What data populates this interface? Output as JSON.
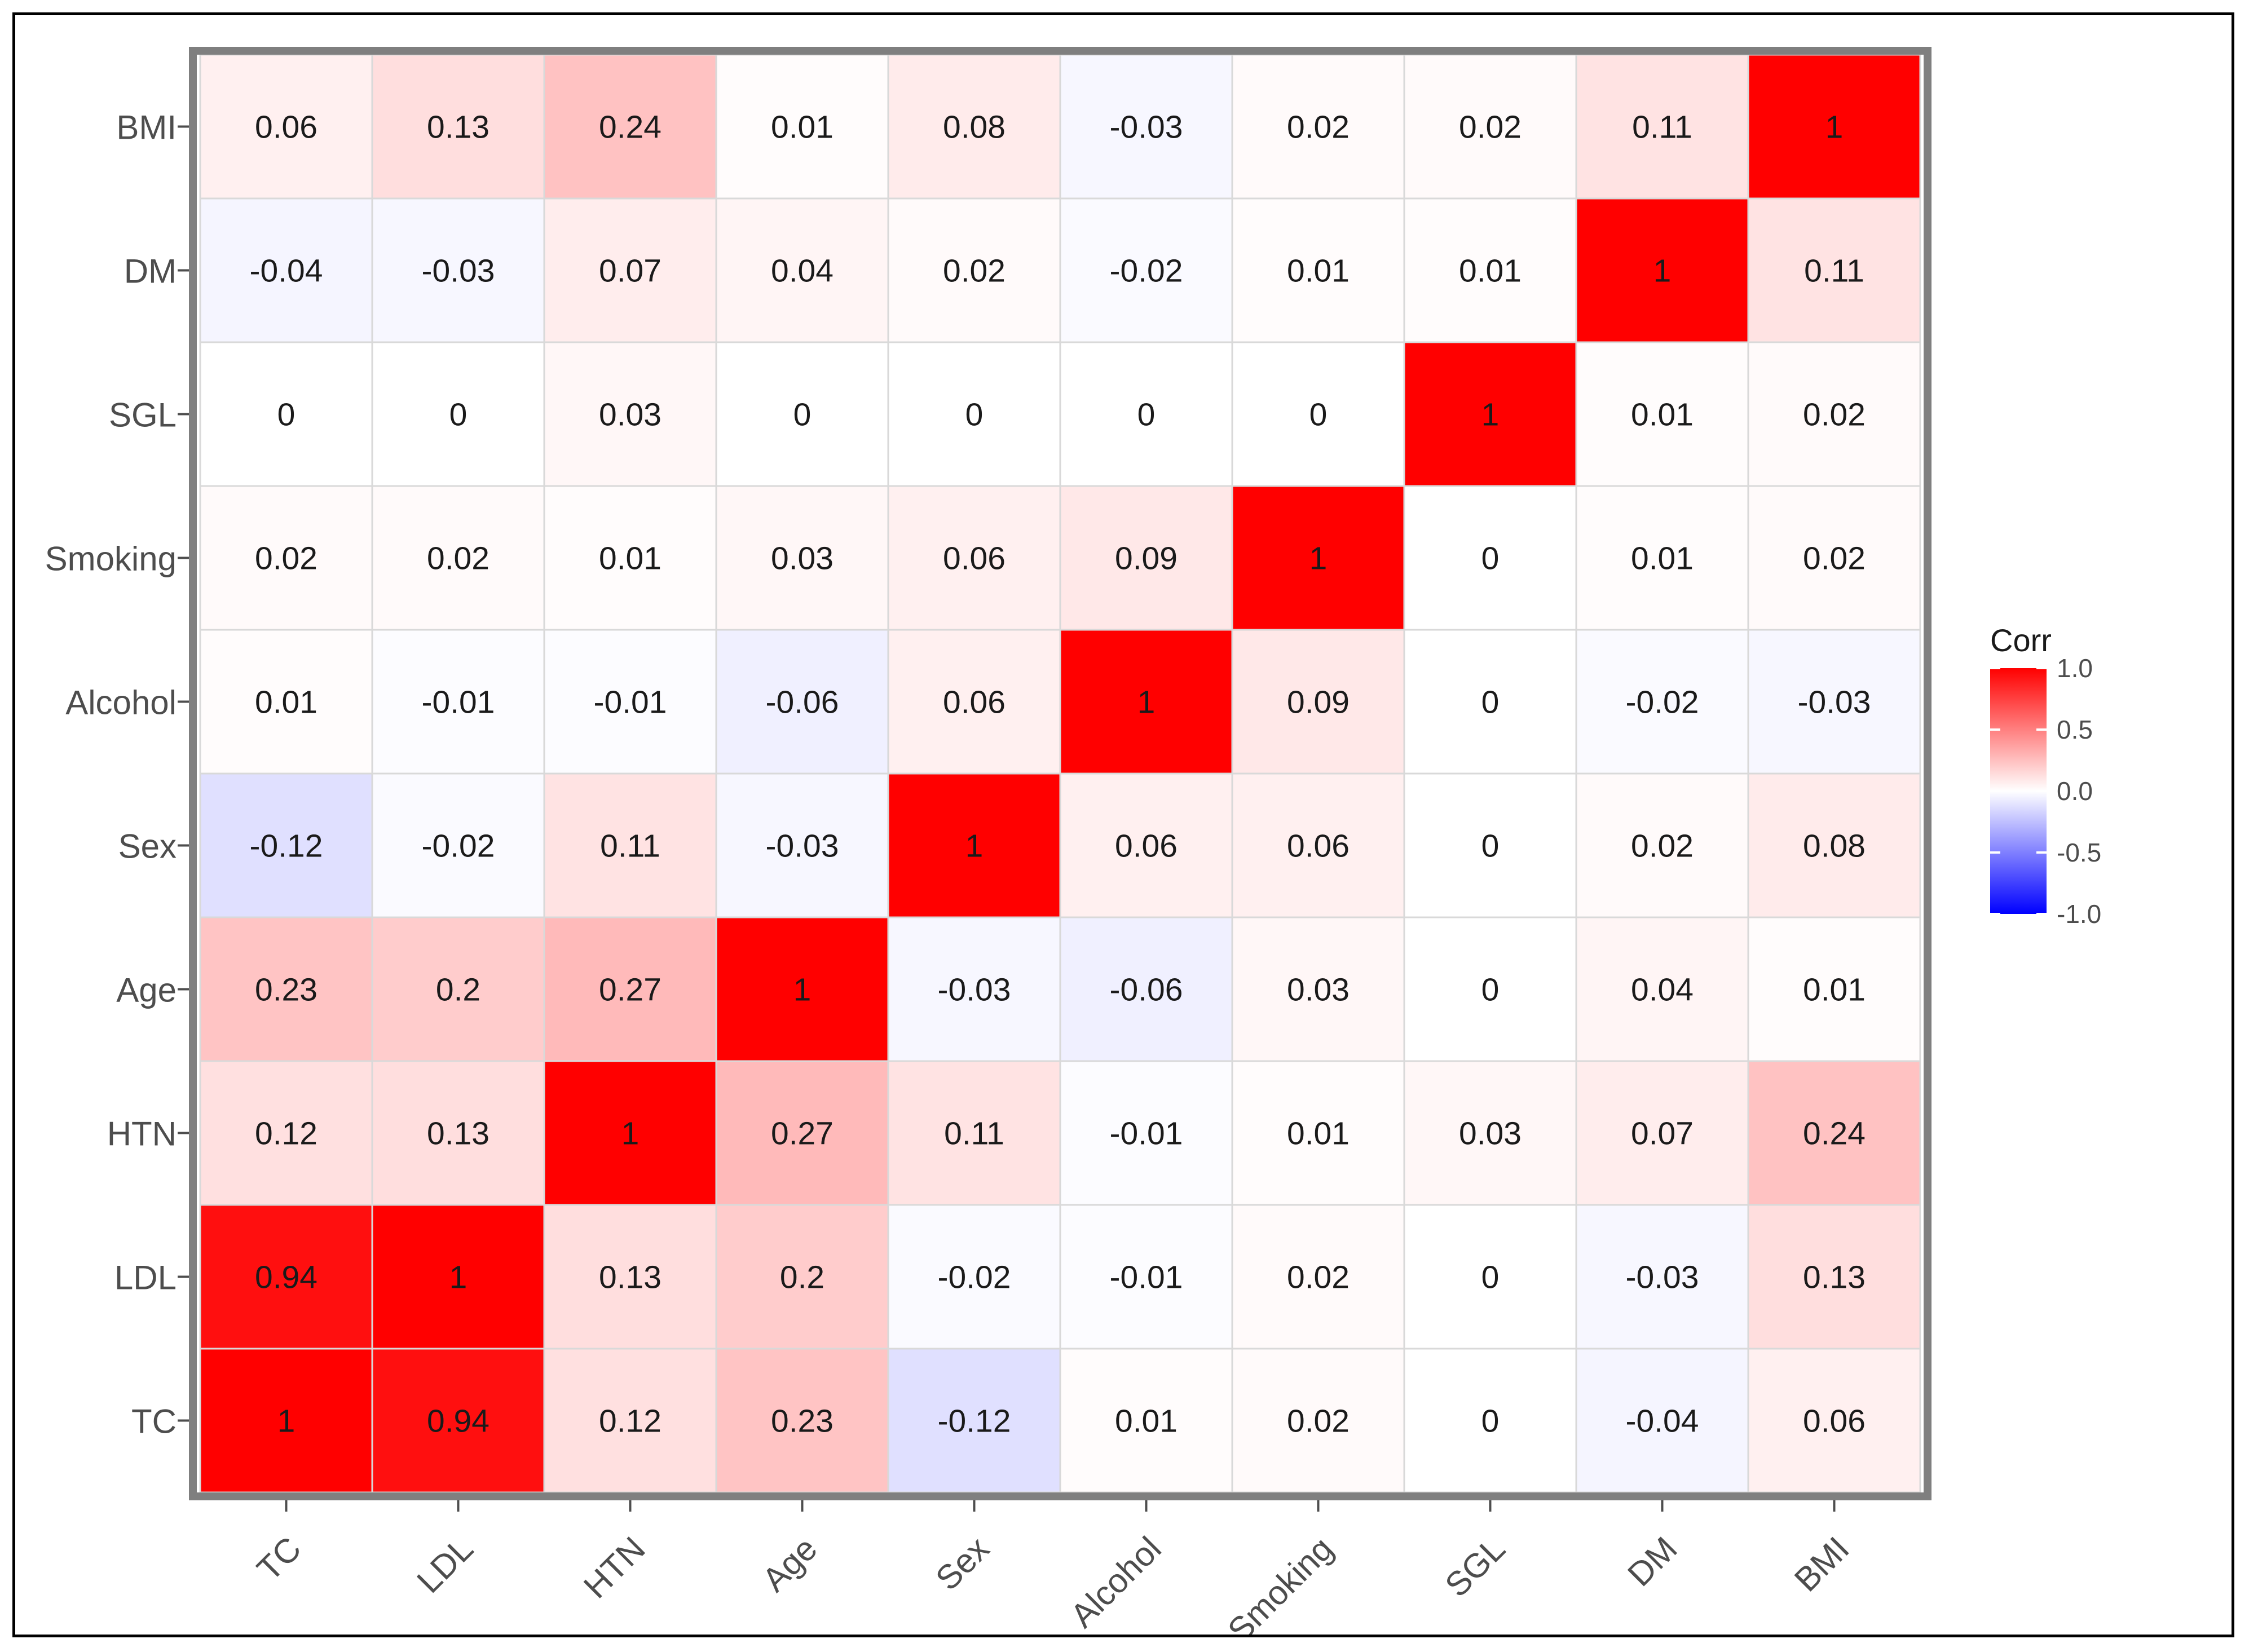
{
  "chart_data": {
    "type": "heatmap",
    "title": "",
    "xlabel": "",
    "ylabel": "",
    "variables": [
      "TC",
      "LDL",
      "HTN",
      "Age",
      "Sex",
      "Alcohol",
      "Smoking",
      "SGL",
      "DM",
      "BMI"
    ],
    "matrix": [
      [
        1,
        0.94,
        0.12,
        0.23,
        -0.12,
        0.01,
        0.02,
        0,
        -0.04,
        0.06
      ],
      [
        0.94,
        1,
        0.13,
        0.2,
        -0.02,
        -0.01,
        0.02,
        0,
        -0.03,
        0.13
      ],
      [
        0.12,
        0.13,
        1,
        0.27,
        0.11,
        -0.01,
        0.01,
        0.03,
        0.07,
        0.24
      ],
      [
        0.23,
        0.2,
        0.27,
        1,
        -0.03,
        -0.06,
        0.03,
        0,
        0.04,
        0.01
      ],
      [
        -0.12,
        -0.02,
        0.11,
        -0.03,
        1,
        0.06,
        0.06,
        0,
        0.02,
        0.08
      ],
      [
        0.01,
        -0.01,
        -0.01,
        -0.06,
        0.06,
        1,
        0.09,
        0,
        -0.02,
        -0.03
      ],
      [
        0.02,
        0.02,
        0.01,
        0.03,
        0.06,
        0.09,
        1,
        0,
        0.01,
        0.02
      ],
      [
        0,
        0,
        0.03,
        0,
        0,
        0,
        0,
        1,
        0.01,
        0.02
      ],
      [
        -0.04,
        -0.03,
        0.07,
        0.04,
        0.02,
        -0.02,
        0.01,
        0.01,
        1,
        0.11
      ],
      [
        0.06,
        0.13,
        0.24,
        0.01,
        0.08,
        -0.03,
        0.02,
        0.02,
        0.11,
        1
      ]
    ],
    "legend": {
      "title": "Corr",
      "ticks": [
        "1.0",
        "0.5",
        "0.0",
        "-0.5",
        "-1.0"
      ],
      "tick_values": [
        1,
        0.5,
        0,
        -0.5,
        -1
      ],
      "range": [
        -1,
        1
      ],
      "position": "right"
    },
    "colors": {
      "high": "#ff0000",
      "mid": "#ffffff",
      "low": "#0000ff",
      "panel_border": "#7f7f7f",
      "grid": "#d9d9d9",
      "text": "#1a1a1a",
      "axis_text": "#4d4d4d"
    }
  }
}
